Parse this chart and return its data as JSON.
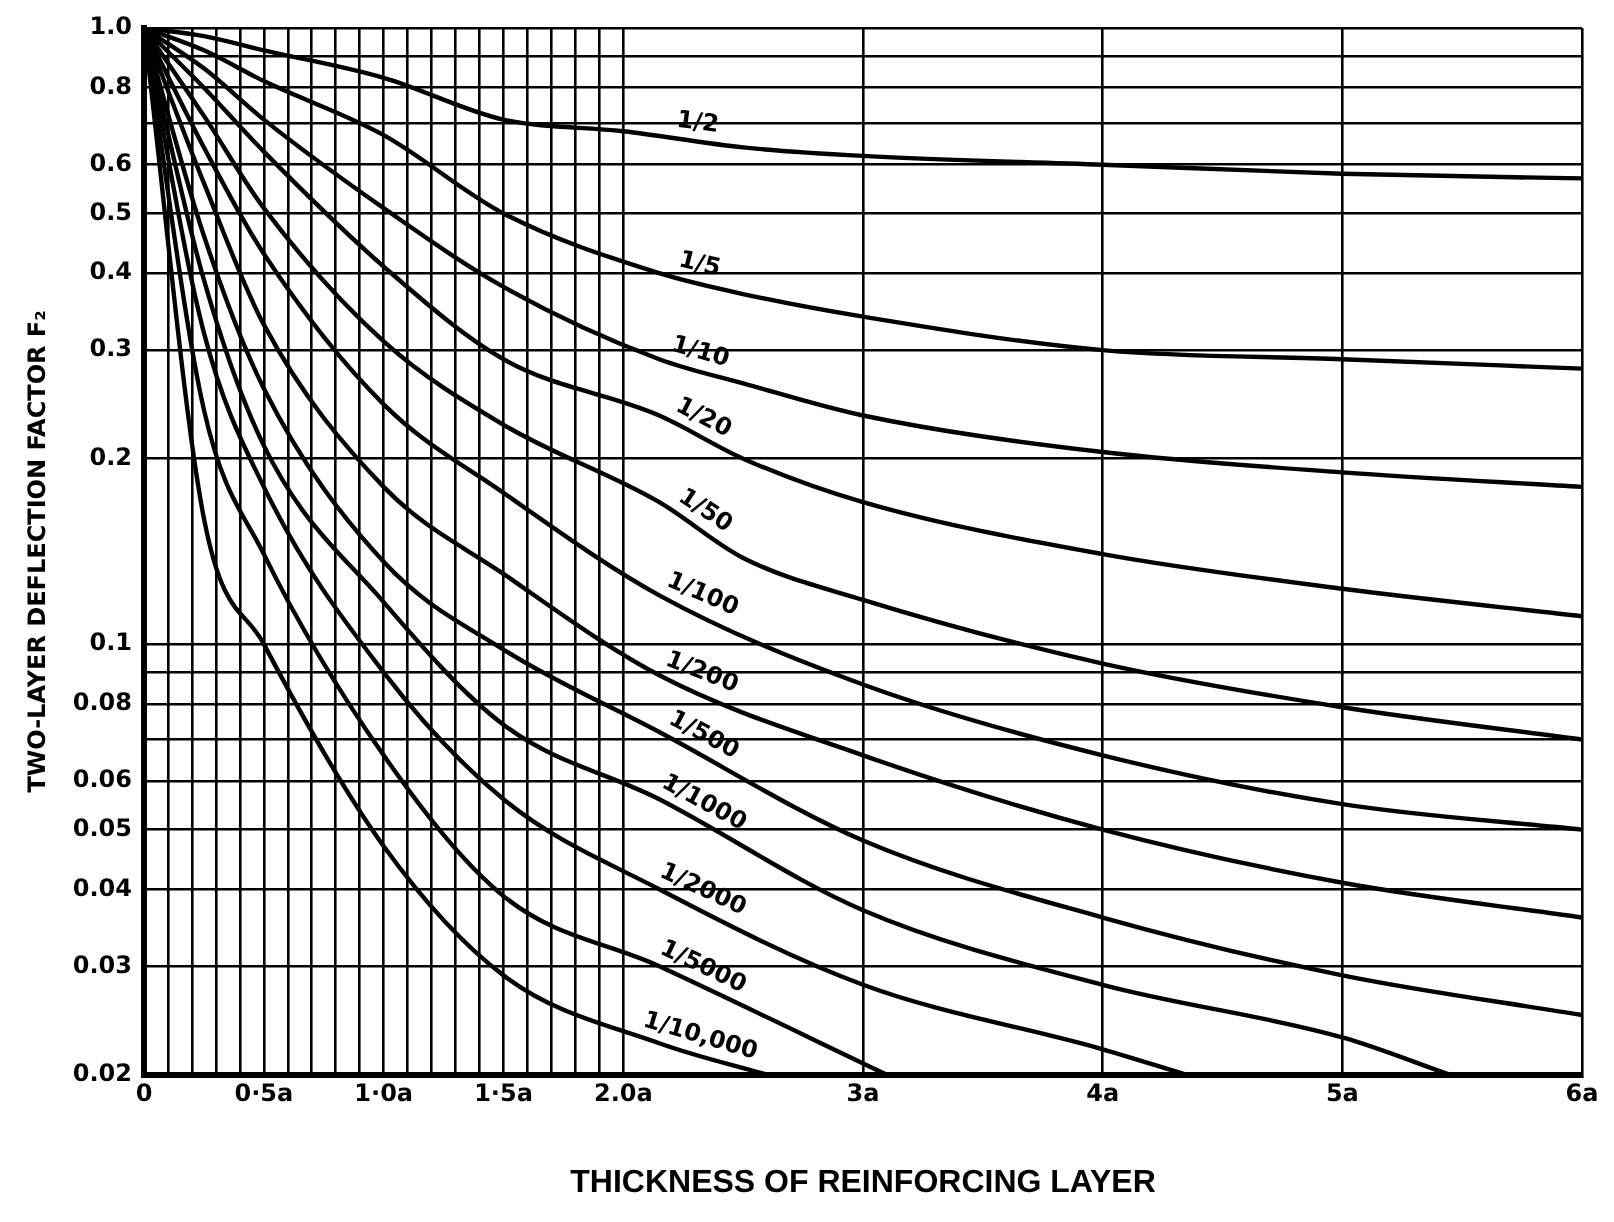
{
  "chart_data": {
    "type": "line",
    "xlabel": "THICKNESS OF REINFORCING LAYER",
    "ylabel": "TWO-LAYER DEFLECTION FACTOR F₂",
    "log": "y",
    "grid": true,
    "xlim": [
      0,
      6
    ],
    "ylim": [
      0.02,
      1
    ],
    "xticks": [
      0,
      {
        "value": 0.1,
        "label": null
      },
      {
        "value": 0.2,
        "label": null
      },
      {
        "value": 0.3,
        "label": null
      },
      {
        "value": 0.4,
        "label": null
      },
      {
        "value": 0.5,
        "label": "0·5a"
      },
      {
        "value": 0.6,
        "label": null
      },
      {
        "value": 0.7,
        "label": null
      },
      {
        "value": 0.8,
        "label": null
      },
      {
        "value": 0.9,
        "label": null
      },
      {
        "value": 1,
        "label": "1·0a"
      },
      {
        "value": 1.1,
        "label": null
      },
      {
        "value": 1.2,
        "label": null
      },
      {
        "value": 1.3,
        "label": null
      },
      {
        "value": 1.4,
        "label": null
      },
      {
        "value": 1.5,
        "label": "1·5a"
      },
      {
        "value": 1.6,
        "label": null
      },
      {
        "value": 1.7,
        "label": null
      },
      {
        "value": 1.8,
        "label": null
      },
      {
        "value": 1.9,
        "label": null
      },
      {
        "value": 2,
        "label": "2.0a"
      },
      {
        "value": 3,
        "label": "3a"
      },
      {
        "value": 4,
        "label": "4a"
      },
      {
        "value": 5,
        "label": "5a"
      },
      {
        "value": 6,
        "label": "6a"
      }
    ],
    "yticks": [
      0.02,
      0.03,
      0.04,
      0.05,
      0.06,
      {
        "value": 0.07,
        "label": null
      },
      0.08,
      {
        "value": 0.09,
        "label": null
      },
      0.1,
      0.2,
      0.3,
      0.4,
      0.5,
      0.6,
      {
        "value": 0.7,
        "label": null
      },
      0.8,
      {
        "value": 0.9,
        "label": null
      },
      {
        "value": 1,
        "label": "1.0"
      }
    ],
    "series": [
      {
        "name": "1/2",
        "color": "#000000",
        "x": [
          0,
          0.25,
          0.5,
          1,
          1.5,
          2,
          2.5,
          3,
          4,
          5,
          6
        ],
        "values": [
          1,
          0.97,
          0.92,
          0.83,
          0.71,
          0.68,
          0.64,
          0.62,
          0.6,
          0.58,
          0.57
        ]
      },
      {
        "name": "1/5",
        "color": "#000000",
        "x": [
          0,
          0.25,
          0.5,
          1,
          1.5,
          2.15,
          2.5,
          3,
          4,
          5,
          6
        ],
        "values": [
          1,
          0.92,
          0.82,
          0.67,
          0.5,
          0.4,
          0.37,
          0.34,
          0.3,
          0.29,
          0.28
        ]
      },
      {
        "name": "1/10",
        "color": "#000000",
        "x": [
          0,
          0.25,
          0.5,
          1,
          1.5,
          2.15,
          2.5,
          3,
          4,
          5,
          6
        ],
        "values": [
          1,
          0.86,
          0.71,
          0.51,
          0.38,
          0.29,
          0.265,
          0.235,
          0.205,
          0.19,
          0.18
        ]
      },
      {
        "name": "1/20",
        "color": "#000000",
        "x": [
          0,
          0.25,
          0.5,
          1,
          1.5,
          2.15,
          2.5,
          3,
          4,
          5,
          6
        ],
        "values": [
          1,
          0.8,
          0.63,
          0.41,
          0.29,
          0.235,
          0.2,
          0.17,
          0.14,
          0.123,
          0.111
        ]
      },
      {
        "name": "1/50",
        "color": "#000000",
        "x": [
          0,
          0.25,
          0.5,
          1,
          1.5,
          2.15,
          2.5,
          3,
          4,
          5,
          6
        ],
        "values": [
          1,
          0.72,
          0.51,
          0.31,
          0.227,
          0.17,
          0.138,
          0.118,
          0.093,
          0.079,
          0.07
        ]
      },
      {
        "name": "1/100",
        "color": "#000000",
        "x": [
          0,
          0.25,
          0.5,
          1,
          1.5,
          2.15,
          3,
          4,
          5,
          6
        ],
        "values": [
          1,
          0.64,
          0.43,
          0.245,
          0.176,
          0.12,
          0.086,
          0.066,
          0.055,
          0.05
        ]
      },
      {
        "name": "1/200",
        "color": "#000000",
        "x": [
          0,
          0.25,
          0.5,
          1,
          1.5,
          2.15,
          3,
          4,
          5,
          6
        ],
        "values": [
          1,
          0.56,
          0.33,
          0.18,
          0.13,
          0.089,
          0.066,
          0.05,
          0.041,
          0.036
        ]
      },
      {
        "name": "1/500",
        "color": "#000000",
        "x": [
          0,
          0.25,
          0.5,
          1,
          1.5,
          2.15,
          3,
          4,
          5,
          6
        ],
        "values": [
          1,
          0.46,
          0.26,
          0.136,
          0.098,
          0.072,
          0.048,
          0.036,
          0.029,
          0.025
        ]
      },
      {
        "name": "1/1000",
        "color": "#000000",
        "x": [
          0,
          0.25,
          0.5,
          1,
          1.5,
          2.15,
          3,
          4,
          5,
          5.45
        ],
        "values": [
          1,
          0.39,
          0.21,
          0.117,
          0.074,
          0.056,
          0.037,
          0.028,
          0.023,
          0.02
        ]
      },
      {
        "name": "1/2000",
        "color": "#000000",
        "x": [
          0,
          0.25,
          0.5,
          1,
          1.5,
          2.15,
          3,
          4,
          4.35
        ],
        "values": [
          1,
          0.32,
          0.18,
          0.09,
          0.056,
          0.04,
          0.028,
          0.022,
          0.02
        ]
      },
      {
        "name": "1/5000",
        "color": "#000000",
        "x": [
          0,
          0.25,
          0.5,
          1,
          1.5,
          2.15,
          3.1
        ],
        "values": [
          1,
          0.24,
          0.14,
          0.066,
          0.039,
          0.03,
          0.02
        ]
      },
      {
        "name": "1/10,000",
        "color": "#000000",
        "x": [
          0,
          0.25,
          0.5,
          1,
          1.5,
          2.15,
          2.6
        ],
        "values": [
          1,
          0.16,
          0.1,
          0.047,
          0.029,
          0.0225,
          0.02
        ]
      }
    ]
  }
}
